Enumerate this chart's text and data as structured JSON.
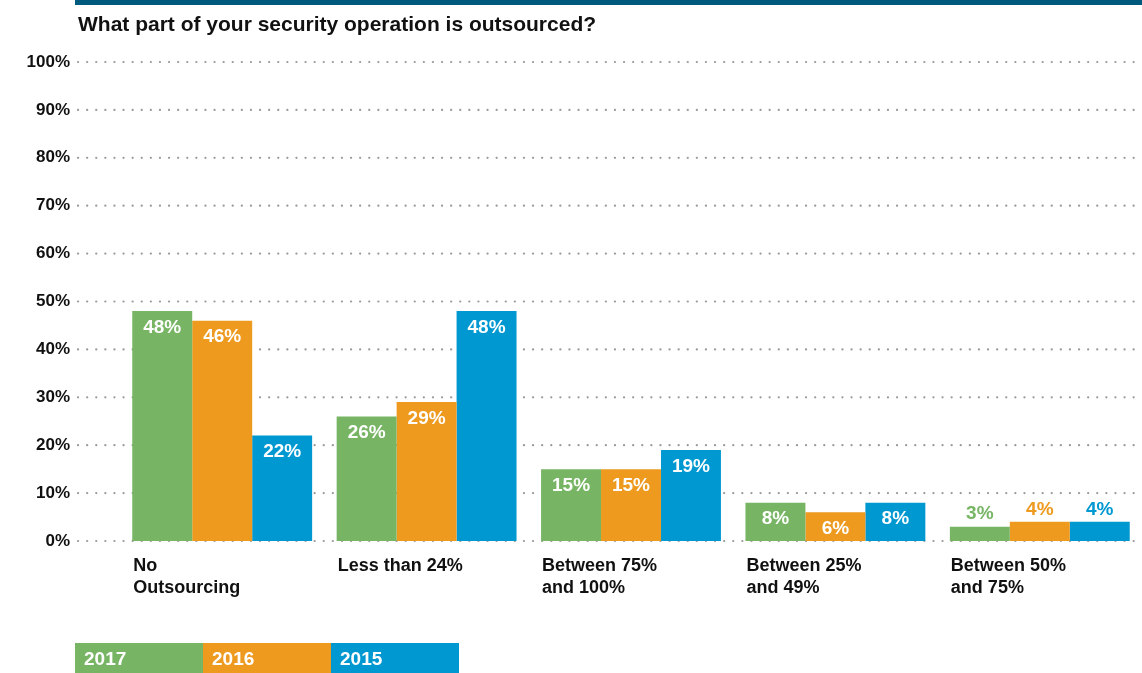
{
  "chart_data": {
    "type": "bar",
    "title": "What part of your security operation is outsourced?",
    "categories": [
      "No Outsourcing",
      "Less than 24%",
      "Between 75% and 100%",
      "Between 25% and 49%",
      "Between 50% and 75%"
    ],
    "series": [
      {
        "name": "2017",
        "color": "#77b564",
        "values": [
          48,
          26,
          15,
          8,
          3
        ],
        "value_labels": [
          "48%",
          "26%",
          "15%",
          "8%",
          "3%"
        ]
      },
      {
        "name": "2016",
        "color": "#ed9a1f",
        "values": [
          46,
          29,
          15,
          6,
          4
        ],
        "value_labels": [
          "46%",
          "29%",
          "15%",
          "6%",
          "4%"
        ]
      },
      {
        "name": "2015",
        "color": "#0098d0",
        "values": [
          22,
          48,
          19,
          8,
          4
        ],
        "value_labels": [
          "22%",
          "48%",
          "19%",
          "8%",
          "4%"
        ]
      }
    ],
    "ylim": [
      0,
      100
    ],
    "yticks": [
      {
        "value": 0,
        "label": "0%"
      },
      {
        "value": 10,
        "label": "10%"
      },
      {
        "value": 20,
        "label": "20%"
      },
      {
        "value": 30,
        "label": "30%"
      },
      {
        "value": 40,
        "label": "40%"
      },
      {
        "value": 50,
        "label": "50%"
      },
      {
        "value": 60,
        "label": "60%"
      },
      {
        "value": 70,
        "label": "70%"
      },
      {
        "value": 80,
        "label": "80%"
      },
      {
        "value": 90,
        "label": "90%"
      },
      {
        "value": 100,
        "label": "100%"
      }
    ],
    "grid": "y",
    "legend": "bottom left"
  }
}
